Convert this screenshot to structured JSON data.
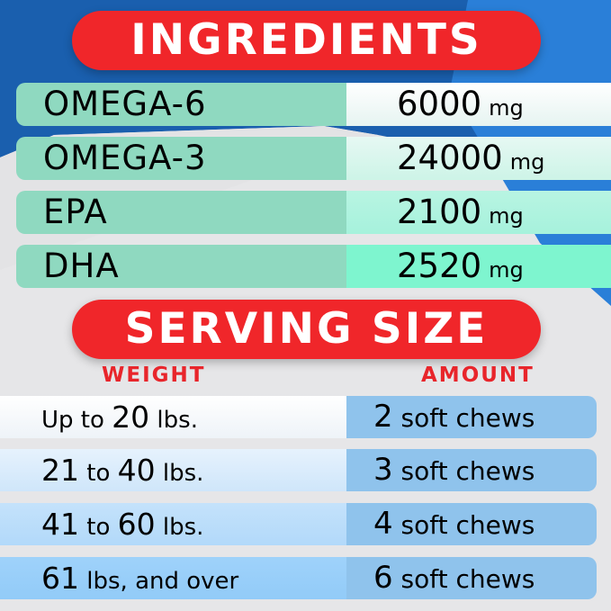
{
  "colors": {
    "accent_red": "#f0262a",
    "blue": "#1a5fae",
    "teal": "#8fd9c0",
    "light_blue": "#8fc3ec"
  },
  "ingredients": {
    "title": "INGREDIENTS",
    "rows": [
      {
        "name": "OMEGA-6",
        "value": "6000",
        "unit": "mg"
      },
      {
        "name": "OMEGA-3",
        "value": "24000",
        "unit": "mg"
      },
      {
        "name": "EPA",
        "value": "2100",
        "unit": "mg"
      },
      {
        "name": "DHA",
        "value": "2520",
        "unit": "mg"
      }
    ]
  },
  "serving": {
    "title": "SERVING SIZE",
    "weight_header": "WEIGHT",
    "amount_header": "AMOUNT",
    "rows": [
      {
        "w1": "Up to ",
        "w2": "20",
        "w3": " lbs.",
        "w4": "",
        "w5": "",
        "count": "2",
        "amount": " soft chews"
      },
      {
        "w1": "",
        "w2": "21",
        "w3": " to ",
        "w4": "40",
        "w5": " lbs.",
        "count": "3",
        "amount": " soft chews"
      },
      {
        "w1": "",
        "w2": "41",
        "w3": " to ",
        "w4": "60",
        "w5": " lbs.",
        "count": "4",
        "amount": " soft chews"
      },
      {
        "w1": "",
        "w2": "61",
        "w3": " lbs, and over",
        "w4": "",
        "w5": "",
        "count": "6",
        "amount": " soft chews"
      }
    ]
  }
}
